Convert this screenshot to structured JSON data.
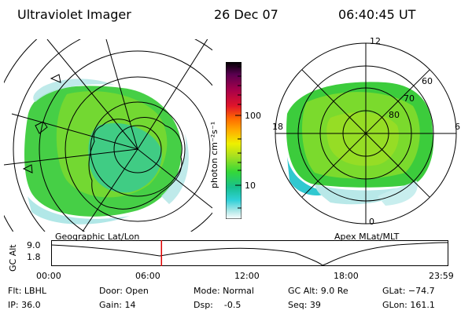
{
  "header": {
    "title": "Ultraviolet Imager",
    "date": "26 Dec 07",
    "time": "06:40:45 UT"
  },
  "geo_panel": {
    "label": "Geographic Lat/Lon"
  },
  "apex_panel": {
    "label": "Apex MLat/MLT",
    "mlt_labels": [
      "12",
      "18",
      "6",
      "0"
    ],
    "lat_labels": [
      "60",
      "70",
      "80"
    ]
  },
  "colorbar": {
    "unit": "photon cm⁻²s⁻¹",
    "ticks": [
      "100",
      "10"
    ],
    "colors": [
      "#000000",
      "#5a0050",
      "#a8004a",
      "#e0142a",
      "#ff6a00",
      "#ffb000",
      "#eef000",
      "#a8e020",
      "#34d838",
      "#18c090",
      "#30d0d8",
      "#b0e8e8",
      "#ffffff"
    ]
  },
  "timeline": {
    "ylabel": "GC Alt",
    "yticks": [
      "9.0",
      "1.8"
    ],
    "xticks": [
      "00:00",
      "06:00",
      "12:00",
      "18:00",
      "23:59"
    ],
    "marker_hours": 6.68
  },
  "info": {
    "flt": "Flt: LBHL",
    "ip": "IP: 36.0",
    "door": "Door: Open",
    "gain": "Gain: 14",
    "mode": "Mode: Normal",
    "dsp": "Dsp:    -0.5",
    "gcalt": "GC Alt: 9.0 Re",
    "seq": "Seq: 39",
    "glat": "GLat: −74.7",
    "glon": "GLon: 161.1"
  }
}
